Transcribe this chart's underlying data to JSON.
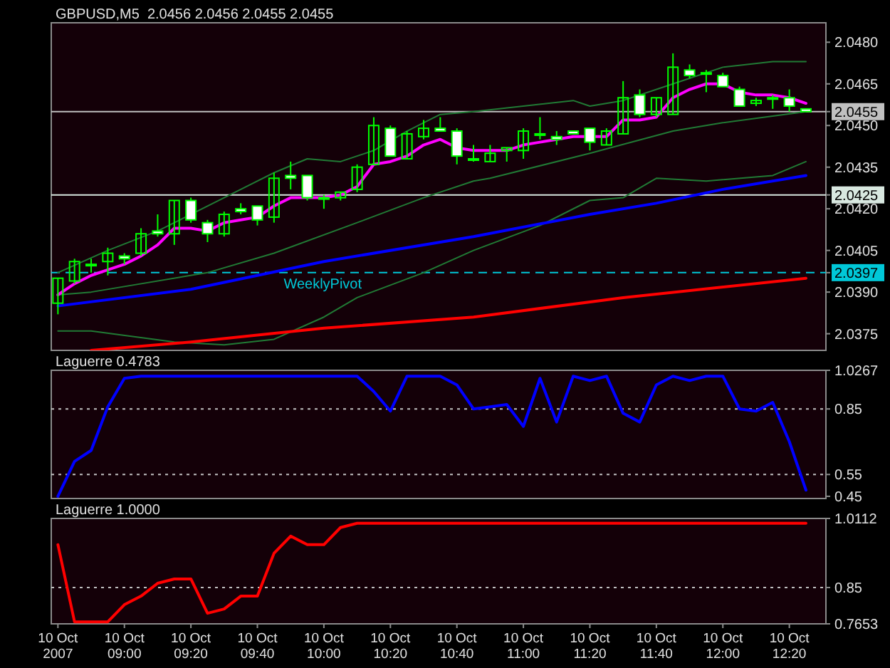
{
  "chart_data": [
    {
      "type": "candlestick",
      "title": "GBPUSD,M5  2.0456 2.0456 2.0455 2.0455",
      "x": [
        "2007-10-10T08:40",
        "2007-10-10T08:45",
        "2007-10-10T08:50",
        "2007-10-10T08:55",
        "2007-10-10T09:00",
        "2007-10-10T09:05",
        "2007-10-10T09:10",
        "2007-10-10T09:15",
        "2007-10-10T09:20",
        "2007-10-10T09:25",
        "2007-10-10T09:30",
        "2007-10-10T09:35",
        "2007-10-10T09:40",
        "2007-10-10T09:45",
        "2007-10-10T09:50",
        "2007-10-10T09:55",
        "2007-10-10T10:00",
        "2007-10-10T10:05",
        "2007-10-10T10:10",
        "2007-10-10T10:15",
        "2007-10-10T10:20",
        "2007-10-10T10:25",
        "2007-10-10T10:30",
        "2007-10-10T10:35",
        "2007-10-10T10:40",
        "2007-10-10T10:45",
        "2007-10-10T10:50",
        "2007-10-10T10:55",
        "2007-10-10T11:00",
        "2007-10-10T11:05",
        "2007-10-10T11:10",
        "2007-10-10T11:15",
        "2007-10-10T11:20",
        "2007-10-10T11:25",
        "2007-10-10T11:30",
        "2007-10-10T11:35",
        "2007-10-10T11:40",
        "2007-10-10T11:45",
        "2007-10-10T11:50",
        "2007-10-10T11:55",
        "2007-10-10T12:00",
        "2007-10-10T12:05",
        "2007-10-10T12:10",
        "2007-10-10T12:15",
        "2007-10-10T12:20",
        "2007-10-10T12:25"
      ],
      "ohlc": [
        [
          2.0386,
          2.0395,
          2.0382,
          2.0395
        ],
        [
          2.0394,
          2.0402,
          2.0393,
          2.0401
        ],
        [
          2.04,
          2.0402,
          2.0397,
          2.04
        ],
        [
          2.0401,
          2.0406,
          2.0396,
          2.0404
        ],
        [
          2.0403,
          2.0404,
          2.04,
          2.0402
        ],
        [
          2.0404,
          2.0413,
          2.0403,
          2.0411
        ],
        [
          2.0412,
          2.0418,
          2.041,
          2.0411
        ],
        [
          2.0411,
          2.0423,
          2.0407,
          2.0423
        ],
        [
          2.0423,
          2.0424,
          2.0415,
          2.0416
        ],
        [
          2.0415,
          2.0416,
          2.0408,
          2.0411
        ],
        [
          2.0411,
          2.0419,
          2.041,
          2.0418
        ],
        [
          2.042,
          2.0422,
          2.0418,
          2.0419
        ],
        [
          2.0421,
          2.0421,
          2.0414,
          2.0416
        ],
        [
          2.0417,
          2.0433,
          2.0415,
          2.0431
        ],
        [
          2.0432,
          2.0437,
          2.0427,
          2.0431
        ],
        [
          2.0432,
          2.0432,
          2.0423,
          2.0424
        ],
        [
          2.0424,
          2.0425,
          2.042,
          2.0424
        ],
        [
          2.0424,
          2.0426,
          2.0423,
          2.0426
        ],
        [
          2.0427,
          2.0436,
          2.0426,
          2.0435
        ],
        [
          2.0436,
          2.0453,
          2.0436,
          2.045
        ],
        [
          2.0449,
          2.045,
          2.0439,
          2.0439
        ],
        [
          2.0438,
          2.0448,
          2.0438,
          2.0447
        ],
        [
          2.0446,
          2.0452,
          2.0445,
          2.0449
        ],
        [
          2.0449,
          2.0453,
          2.0448,
          2.0448
        ],
        [
          2.0448,
          2.0449,
          2.0436,
          2.0439
        ],
        [
          2.0438,
          2.0443,
          2.0437,
          2.0438
        ],
        [
          2.0437,
          2.0443,
          2.0437,
          2.044
        ],
        [
          2.0441,
          2.0442,
          2.0437,
          2.0442
        ],
        [
          2.0441,
          2.0449,
          2.0438,
          2.0448
        ],
        [
          2.0447,
          2.0453,
          2.0445,
          2.0447
        ],
        [
          2.0446,
          2.0448,
          2.0443,
          2.0445
        ],
        [
          2.0448,
          2.0448,
          2.0447,
          2.0447
        ],
        [
          2.0449,
          2.0449,
          2.0441,
          2.0444
        ],
        [
          2.0443,
          2.0449,
          2.0443,
          2.0448
        ],
        [
          2.0447,
          2.0466,
          2.0447,
          2.046
        ],
        [
          2.0461,
          2.0463,
          2.0453,
          2.0454
        ],
        [
          2.0454,
          2.046,
          2.0453,
          2.046
        ],
        [
          2.0454,
          2.0476,
          2.0454,
          2.0471
        ],
        [
          2.047,
          2.0472,
          2.0467,
          2.0468
        ],
        [
          2.0469,
          2.047,
          2.0462,
          2.0469
        ],
        [
          2.0468,
          2.0469,
          2.0464,
          2.0464
        ],
        [
          2.0463,
          2.0464,
          2.0457,
          2.0457
        ],
        [
          2.0458,
          2.046,
          2.0457,
          2.0459
        ],
        [
          2.046,
          2.0461,
          2.0456,
          2.046
        ],
        [
          2.046,
          2.0463,
          2.0455,
          2.0457
        ],
        [
          2.0456,
          2.0456,
          2.0455,
          2.0455
        ]
      ],
      "series": [
        {
          "type": "line",
          "color": "#217a35",
          "x": [
            "2007-10-10T08:40",
            "2007-10-10T08:55",
            "2007-10-10T09:10",
            "2007-10-10T09:30",
            "2007-10-10T09:45",
            "2007-10-10T09:55",
            "2007-10-10T10:05",
            "2007-10-10T10:15",
            "2007-10-10T10:25",
            "2007-10-10T10:35",
            "2007-10-10T10:45",
            "2007-10-10T11:15",
            "2007-10-10T11:20",
            "2007-10-10T11:30",
            "2007-10-10T11:45",
            "2007-10-10T12:00",
            "2007-10-10T12:15",
            "2007-10-10T12:25"
          ],
          "values": [
            2.0397,
            2.0405,
            2.0412,
            2.0424,
            2.0433,
            2.0438,
            2.0437,
            2.0441,
            2.0448,
            2.0454,
            2.0455,
            2.0459,
            2.0457,
            2.0459,
            2.0465,
            2.0471,
            2.0473,
            2.0473
          ]
        },
        {
          "type": "line",
          "color": "#217a35",
          "x": [
            "2007-10-10T08:40",
            "2007-10-10T08:50",
            "2007-10-10T09:25",
            "2007-10-10T09:45",
            "2007-10-10T10:10",
            "2007-10-10T10:30",
            "2007-10-10T10:45",
            "2007-10-10T10:50",
            "2007-10-10T11:20",
            "2007-10-10T11:45",
            "2007-10-10T12:00",
            "2007-10-10T12:25"
          ],
          "values": [
            2.0389,
            2.039,
            2.0397,
            2.0404,
            2.0415,
            2.0424,
            2.043,
            2.0431,
            2.044,
            2.0448,
            2.0451,
            2.0455
          ]
        },
        {
          "type": "line",
          "color": "#217a35",
          "x": [
            "2007-10-10T08:40",
            "2007-10-10T08:50",
            "2007-10-10T09:15",
            "2007-10-10T09:30",
            "2007-10-10T09:45",
            "2007-10-10T10:00",
            "2007-10-10T10:10",
            "2007-10-10T10:30",
            "2007-10-10T10:45",
            "2007-10-10T11:05",
            "2007-10-10T11:20",
            "2007-10-10T11:30",
            "2007-10-10T11:40",
            "2007-10-10T11:55",
            "2007-10-10T12:15",
            "2007-10-10T12:25"
          ],
          "values": [
            2.0376,
            2.0376,
            2.0372,
            2.0371,
            2.0373,
            2.0381,
            2.0388,
            2.0397,
            2.0405,
            2.0414,
            2.0423,
            2.0424,
            2.0431,
            2.043,
            2.0432,
            2.0437
          ]
        },
        {
          "type": "line",
          "color": "#0000ff",
          "x": [
            "2007-10-10T08:40",
            "2007-10-10T09:20",
            "2007-10-10T10:00",
            "2007-10-10T10:45",
            "2007-10-10T11:20",
            "2007-10-10T11:40",
            "2007-10-10T12:00",
            "2007-10-10T12:25"
          ],
          "values": [
            2.0385,
            2.0391,
            2.0401,
            2.041,
            2.0418,
            2.0422,
            2.0427,
            2.0432
          ]
        },
        {
          "type": "line",
          "color": "#ff0000",
          "x": [
            "2007-10-10T08:50",
            "2007-10-10T09:20",
            "2007-10-10T10:00",
            "2007-10-10T10:45",
            "2007-10-10T11:30",
            "2007-10-10T12:25"
          ],
          "values": [
            2.0369,
            2.0372,
            2.0377,
            2.0381,
            2.0388,
            2.0395
          ]
        },
        {
          "type": "line",
          "color": "#ff00ff",
          "values": [
            2.0389,
            2.0393,
            2.0396,
            2.0398,
            2.04,
            2.0403,
            2.0407,
            2.0413,
            2.0413,
            2.0412,
            2.0415,
            2.0416,
            2.0417,
            2.0421,
            2.0424,
            2.0424,
            2.0424,
            2.0425,
            2.0428,
            2.0436,
            2.0437,
            2.0439,
            2.0443,
            2.0445,
            2.0442,
            2.0441,
            2.0441,
            2.0441,
            2.0443,
            2.0444,
            2.0445,
            2.0446,
            2.0446,
            2.0446,
            2.0452,
            2.0452,
            2.0453,
            2.046,
            2.0463,
            2.0465,
            2.0465,
            2.0462,
            2.0461,
            2.0461,
            2.046,
            2.0458
          ]
        }
      ],
      "xlim": [
        "2007-10-10T08:38",
        "2007-10-10T12:31"
      ],
      "ylim": [
        2.0369,
        2.0487
      ],
      "yticks": [
        2.0375,
        {
          "value": 2.039,
          "label": "2.0390"
        },
        2.0397,
        2.0405,
        {
          "value": 2.042,
          "label": "2.0420"
        },
        2.0425,
        2.0435,
        {
          "value": 2.045,
          "label": "2.0450"
        },
        2.0455,
        2.0465,
        {
          "value": 2.048,
          "label": "2.0480"
        }
      ],
      "ref_lines": [
        {
          "axis": "y",
          "value": 2.0455,
          "color": "#c0c0c0"
        },
        {
          "axis": "y",
          "value": 2.0425,
          "color": "#d8e8e0"
        },
        {
          "axis": "y",
          "value": 2.0397,
          "label": "WeeklyPivot",
          "color": "#00c8d8",
          "line_style": "dashed"
        }
      ],
      "tick_labels": "y"
    },
    {
      "type": "line",
      "title": "Laguerre 0.4783",
      "x": [
        "2007-10-10T08:40",
        "2007-10-10T08:45",
        "2007-10-10T08:50",
        "2007-10-10T08:55",
        "2007-10-10T09:00",
        "2007-10-10T09:05",
        "2007-10-10T09:10",
        "2007-10-10T09:15",
        "2007-10-10T09:20",
        "2007-10-10T09:25",
        "2007-10-10T09:30",
        "2007-10-10T09:35",
        "2007-10-10T09:40",
        "2007-10-10T09:45",
        "2007-10-10T09:50",
        "2007-10-10T09:55",
        "2007-10-10T10:00",
        "2007-10-10T10:05",
        "2007-10-10T10:10",
        "2007-10-10T10:15",
        "2007-10-10T10:20",
        "2007-10-10T10:25",
        "2007-10-10T10:30",
        "2007-10-10T10:35",
        "2007-10-10T10:40",
        "2007-10-10T10:45",
        "2007-10-10T10:50",
        "2007-10-10T10:55",
        "2007-10-10T11:00",
        "2007-10-10T11:05",
        "2007-10-10T11:10",
        "2007-10-10T11:15",
        "2007-10-10T11:20",
        "2007-10-10T11:25",
        "2007-10-10T11:30",
        "2007-10-10T11:35",
        "2007-10-10T11:40",
        "2007-10-10T11:45",
        "2007-10-10T11:50",
        "2007-10-10T11:55",
        "2007-10-10T12:00",
        "2007-10-10T12:05",
        "2007-10-10T12:10",
        "2007-10-10T12:15",
        "2007-10-10T12:20",
        "2007-10-10T12:25"
      ],
      "series": [
        {
          "color": "#0000ff",
          "values": [
            0.45,
            0.61,
            0.66,
            0.86,
            0.99,
            1.0,
            1.0,
            1.0,
            1.0,
            1.0,
            1.0,
            1.0,
            1.0,
            1.0,
            1.0,
            1.0,
            1.0,
            1.0,
            1.0,
            0.93,
            0.84,
            1.0,
            1.0,
            1.0,
            0.96,
            0.85,
            0.86,
            0.87,
            0.77,
            0.99,
            0.79,
            1.0,
            0.98,
            1.0,
            0.83,
            0.79,
            0.96,
            1.0,
            0.98,
            1.0,
            1.0,
            0.85,
            0.84,
            0.88,
            0.7,
            0.4783
          ]
        }
      ],
      "xlim": [
        "2007-10-10T08:38",
        "2007-10-10T12:31"
      ],
      "ylim": [
        0.44,
        1.0267
      ],
      "yticks": [
        0.45,
        0.55,
        0.85,
        1.0267
      ],
      "ref_lines": [
        {
          "axis": "y",
          "value": 0.85,
          "color": "#c0c0c0",
          "line_style": "dotted"
        },
        {
          "axis": "y",
          "value": 0.55,
          "color": "#c0c0c0",
          "line_style": "dotted"
        }
      ],
      "tick_labels": "y"
    },
    {
      "type": "line",
      "title": "Laguerre 1.0000",
      "x": [
        "2007-10-10T08:40",
        "2007-10-10T08:45",
        "2007-10-10T08:50",
        "2007-10-10T08:55",
        "2007-10-10T09:00",
        "2007-10-10T09:05",
        "2007-10-10T09:10",
        "2007-10-10T09:15",
        "2007-10-10T09:20",
        "2007-10-10T09:25",
        "2007-10-10T09:30",
        "2007-10-10T09:35",
        "2007-10-10T09:40",
        "2007-10-10T09:45",
        "2007-10-10T09:50",
        "2007-10-10T09:55",
        "2007-10-10T10:00",
        "2007-10-10T10:05",
        "2007-10-10T10:10",
        "2007-10-10T10:15",
        "2007-10-10T10:20",
        "2007-10-10T10:25",
        "2007-10-10T10:30",
        "2007-10-10T10:35",
        "2007-10-10T10:40",
        "2007-10-10T10:45",
        "2007-10-10T10:50",
        "2007-10-10T10:55",
        "2007-10-10T11:00",
        "2007-10-10T11:05",
        "2007-10-10T11:10",
        "2007-10-10T11:15",
        "2007-10-10T11:20",
        "2007-10-10T11:25",
        "2007-10-10T11:30",
        "2007-10-10T11:35",
        "2007-10-10T11:40",
        "2007-10-10T11:45",
        "2007-10-10T11:50",
        "2007-10-10T11:55",
        "2007-10-10T12:00",
        "2007-10-10T12:05",
        "2007-10-10T12:10",
        "2007-10-10T12:15",
        "2007-10-10T12:20",
        "2007-10-10T12:25"
      ],
      "series": [
        {
          "color": "#ff0000",
          "values": [
            0.95,
            0.77,
            0.77,
            0.77,
            0.81,
            0.83,
            0.86,
            0.87,
            0.87,
            0.79,
            0.8,
            0.83,
            0.83,
            0.93,
            0.97,
            0.95,
            0.95,
            0.99,
            1.0,
            1.0,
            1.0,
            1.0,
            1.0,
            1.0,
            1.0,
            1.0,
            1.0,
            1.0,
            1.0,
            1.0,
            1.0,
            1.0,
            1.0,
            1.0,
            1.0,
            1.0,
            1.0,
            1.0,
            1.0,
            1.0,
            1.0,
            1.0,
            1.0,
            1.0,
            1.0,
            1.0
          ]
        }
      ],
      "xlim": [
        "2007-10-10T08:38",
        "2007-10-10T12:31"
      ],
      "xticks": [
        {
          "value": "2007-10-10T08:40",
          "label": "10 Oct 2007"
        },
        {
          "value": "2007-10-10T09:00",
          "label": "10 Oct 09:00"
        },
        {
          "value": "2007-10-10T09:20",
          "label": "10 Oct 09:20"
        },
        {
          "value": "2007-10-10T09:40",
          "label": "10 Oct 09:40"
        },
        {
          "value": "2007-10-10T10:00",
          "label": "10 Oct 10:00"
        },
        {
          "value": "2007-10-10T10:20",
          "label": "10 Oct 10:20"
        },
        {
          "value": "2007-10-10T10:40",
          "label": "10 Oct 10:40"
        },
        {
          "value": "2007-10-10T11:00",
          "label": "10 Oct 11:00"
        },
        {
          "value": "2007-10-10T11:20",
          "label": "10 Oct 11:20"
        },
        {
          "value": "2007-10-10T11:40",
          "label": "10 Oct 11:40"
        },
        {
          "value": "2007-10-10T12:00",
          "label": "10 Oct 12:00"
        },
        {
          "value": "2007-10-10T12:20",
          "label": "10 Oct 12:20"
        }
      ],
      "ylim": [
        0.7653,
        1.0112
      ],
      "yticks": [
        0.7653,
        0.85,
        1.0112
      ],
      "ref_lines": [
        {
          "axis": "y",
          "value": 0.85,
          "color": "#c0c0c0",
          "line_style": "dotted"
        }
      ]
    }
  ]
}
